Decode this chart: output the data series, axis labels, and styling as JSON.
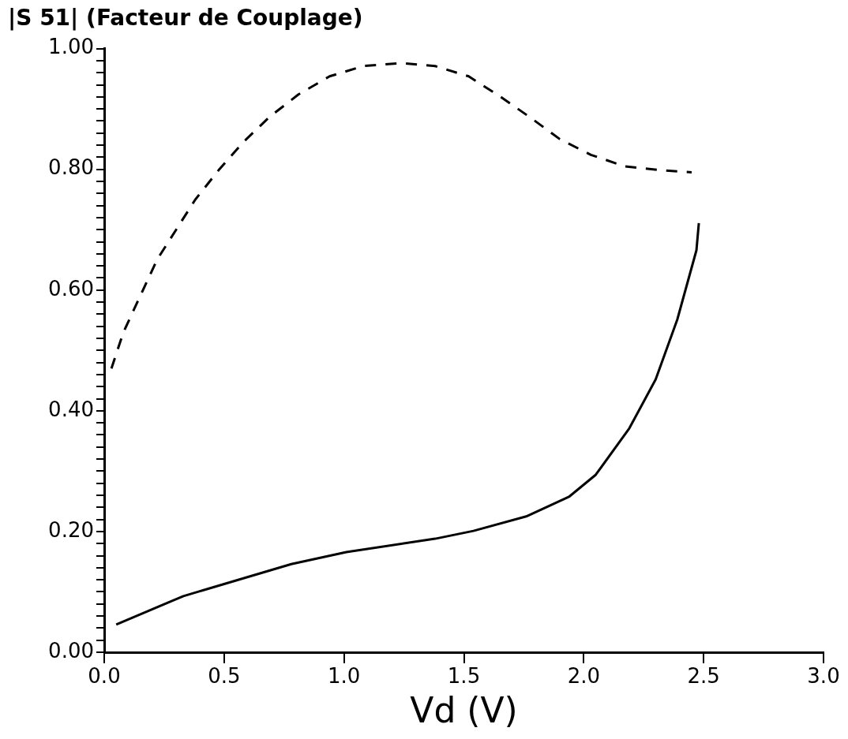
{
  "chart_data": {
    "type": "line",
    "title": "|S 51| (Facteur de Couplage)",
    "xlabel": "Vd (V)",
    "xlim": [
      0,
      3
    ],
    "xticks": [
      {
        "value": 0,
        "label": "0.0"
      },
      0.5,
      {
        "value": 1,
        "label": "1.0"
      },
      1.5,
      {
        "value": 2,
        "label": "2.0"
      },
      2.5,
      {
        "value": 3,
        "label": "3.0"
      }
    ],
    "ylim": [
      0,
      1
    ],
    "yticks": [
      {
        "value": 0,
        "label": "0.00"
      },
      {
        "value": 0.02,
        "label": null
      },
      {
        "value": 0.04,
        "label": null
      },
      {
        "value": 0.06,
        "label": null
      },
      {
        "value": 0.08,
        "label": null
      },
      {
        "value": 0.1,
        "label": null
      },
      {
        "value": 0.12,
        "label": null
      },
      {
        "value": 0.14,
        "label": null
      },
      {
        "value": 0.16,
        "label": null
      },
      {
        "value": 0.18,
        "label": null
      },
      {
        "value": 0.2,
        "label": "0.20"
      },
      {
        "value": 0.22,
        "label": null
      },
      {
        "value": 0.24,
        "label": null
      },
      {
        "value": 0.26,
        "label": null
      },
      {
        "value": 0.28,
        "label": null
      },
      {
        "value": 0.3,
        "label": null
      },
      {
        "value": 0.32,
        "label": null
      },
      {
        "value": 0.34,
        "label": null
      },
      {
        "value": 0.36,
        "label": null
      },
      {
        "value": 0.38,
        "label": null
      },
      {
        "value": 0.4,
        "label": "0.40"
      },
      {
        "value": 0.42,
        "label": null
      },
      {
        "value": 0.44,
        "label": null
      },
      {
        "value": 0.46,
        "label": null
      },
      {
        "value": 0.48,
        "label": null
      },
      {
        "value": 0.5,
        "label": null
      },
      {
        "value": 0.52,
        "label": null
      },
      {
        "value": 0.54,
        "label": null
      },
      {
        "value": 0.56,
        "label": null
      },
      {
        "value": 0.58,
        "label": null
      },
      {
        "value": 0.6,
        "label": "0.60"
      },
      {
        "value": 0.62,
        "label": null
      },
      {
        "value": 0.64,
        "label": null
      },
      {
        "value": 0.66,
        "label": null
      },
      {
        "value": 0.68,
        "label": null
      },
      {
        "value": 0.7,
        "label": null
      },
      {
        "value": 0.72,
        "label": null
      },
      {
        "value": 0.74,
        "label": null
      },
      {
        "value": 0.76,
        "label": null
      },
      {
        "value": 0.78,
        "label": null
      },
      {
        "value": 0.8,
        "label": "0.80"
      },
      {
        "value": 0.82,
        "label": null
      },
      {
        "value": 0.84,
        "label": null
      },
      {
        "value": 0.86,
        "label": null
      },
      {
        "value": 0.88,
        "label": null
      },
      {
        "value": 0.9,
        "label": null
      },
      {
        "value": 0.92,
        "label": null
      },
      {
        "value": 0.94,
        "label": null
      },
      {
        "value": 0.96,
        "label": null
      },
      {
        "value": 0.98,
        "label": null
      },
      {
        "value": 1,
        "label": "1.00"
      }
    ],
    "marker": "none",
    "legend": false,
    "series": [
      {
        "color": "#000000",
        "line_style": "dashed",
        "x": [
          0.03,
          0.08,
          0.15,
          0.22,
          0.3,
          0.38,
          0.48,
          0.58,
          0.69,
          0.81,
          0.94,
          1.08,
          1.24,
          1.38,
          1.52,
          1.65,
          1.78,
          1.9,
          2.03,
          2.17,
          2.31,
          2.45
        ],
        "values": [
          0.47,
          0.53,
          0.59,
          0.65,
          0.7,
          0.75,
          0.8,
          0.845,
          0.887,
          0.924,
          0.954,
          0.971,
          0.976,
          0.971,
          0.954,
          0.921,
          0.885,
          0.85,
          0.824,
          0.805,
          0.799,
          0.795
        ]
      },
      {
        "color": "#000000",
        "line_style": "solid",
        "x": [
          0.05,
          0.33,
          0.78,
          1.01,
          1.38,
          1.54,
          1.76,
          1.94,
          2.05,
          2.19,
          2.3,
          2.39,
          2.47,
          2.48
        ],
        "values": [
          0.046,
          0.093,
          0.146,
          0.166,
          0.188,
          0.201,
          0.225,
          0.258,
          0.294,
          0.371,
          0.452,
          0.551,
          0.666,
          0.711
        ]
      }
    ]
  }
}
